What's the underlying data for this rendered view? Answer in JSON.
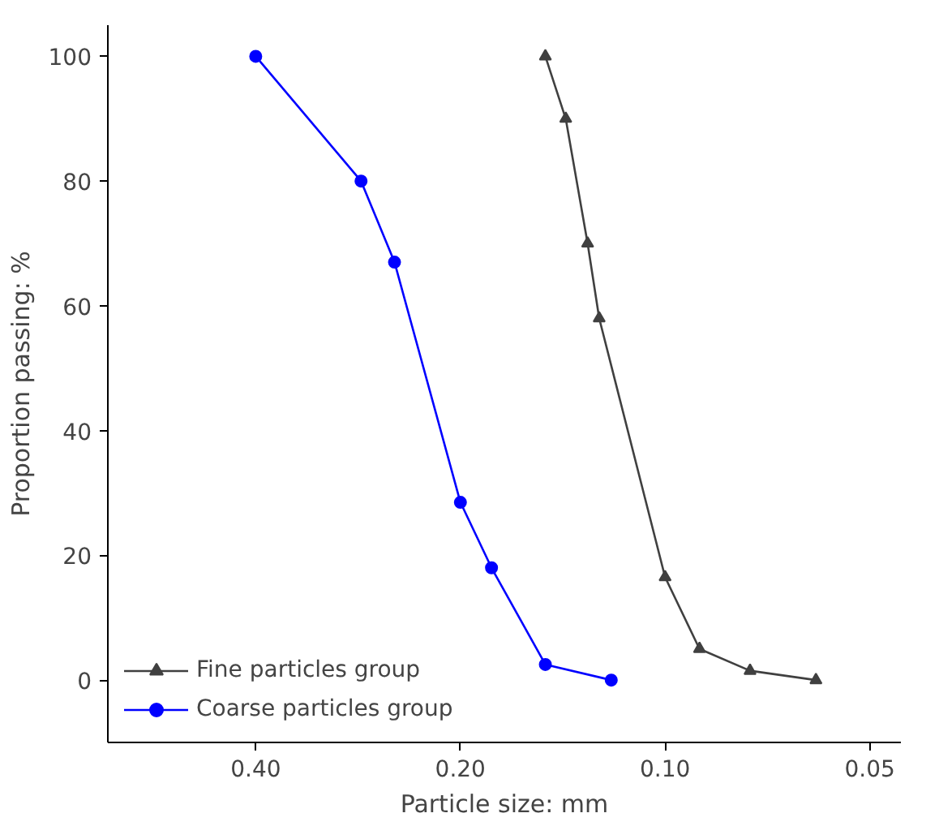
{
  "chart_data": {
    "type": "line",
    "xlabel": "Particle size: mm",
    "ylabel": "Proportion passing: %",
    "log": "x",
    "xlim": [
      0.66,
      0.045
    ],
    "xticks": [
      {
        "value": 0.4,
        "label": "0.40"
      },
      {
        "value": 0.2,
        "label": "0.20"
      },
      {
        "value": 0.1,
        "label": "0.10"
      },
      {
        "value": 0.05,
        "label": "0.05"
      }
    ],
    "ylim": [
      -10,
      105
    ],
    "yticks": [
      0,
      20,
      40,
      60,
      80,
      100
    ],
    "grid": false,
    "legend": "bottom left",
    "series": [
      {
        "name": "Fine particles group",
        "color": "#404040",
        "marker": "triangle",
        "x": [
          0.15,
          0.14,
          0.13,
          0.125,
          0.1,
          0.089,
          0.075,
          0.06
        ],
        "values": [
          100,
          90,
          70,
          58,
          16.5,
          5,
          1.5,
          0
        ]
      },
      {
        "name": "Coarse particles group",
        "color": "#0000ff",
        "marker": "circle",
        "x": [
          0.4,
          0.28,
          0.25,
          0.2,
          0.18,
          0.15,
          0.12
        ],
        "values": [
          100,
          80,
          67,
          28.5,
          18,
          2.5,
          0
        ]
      }
    ]
  }
}
